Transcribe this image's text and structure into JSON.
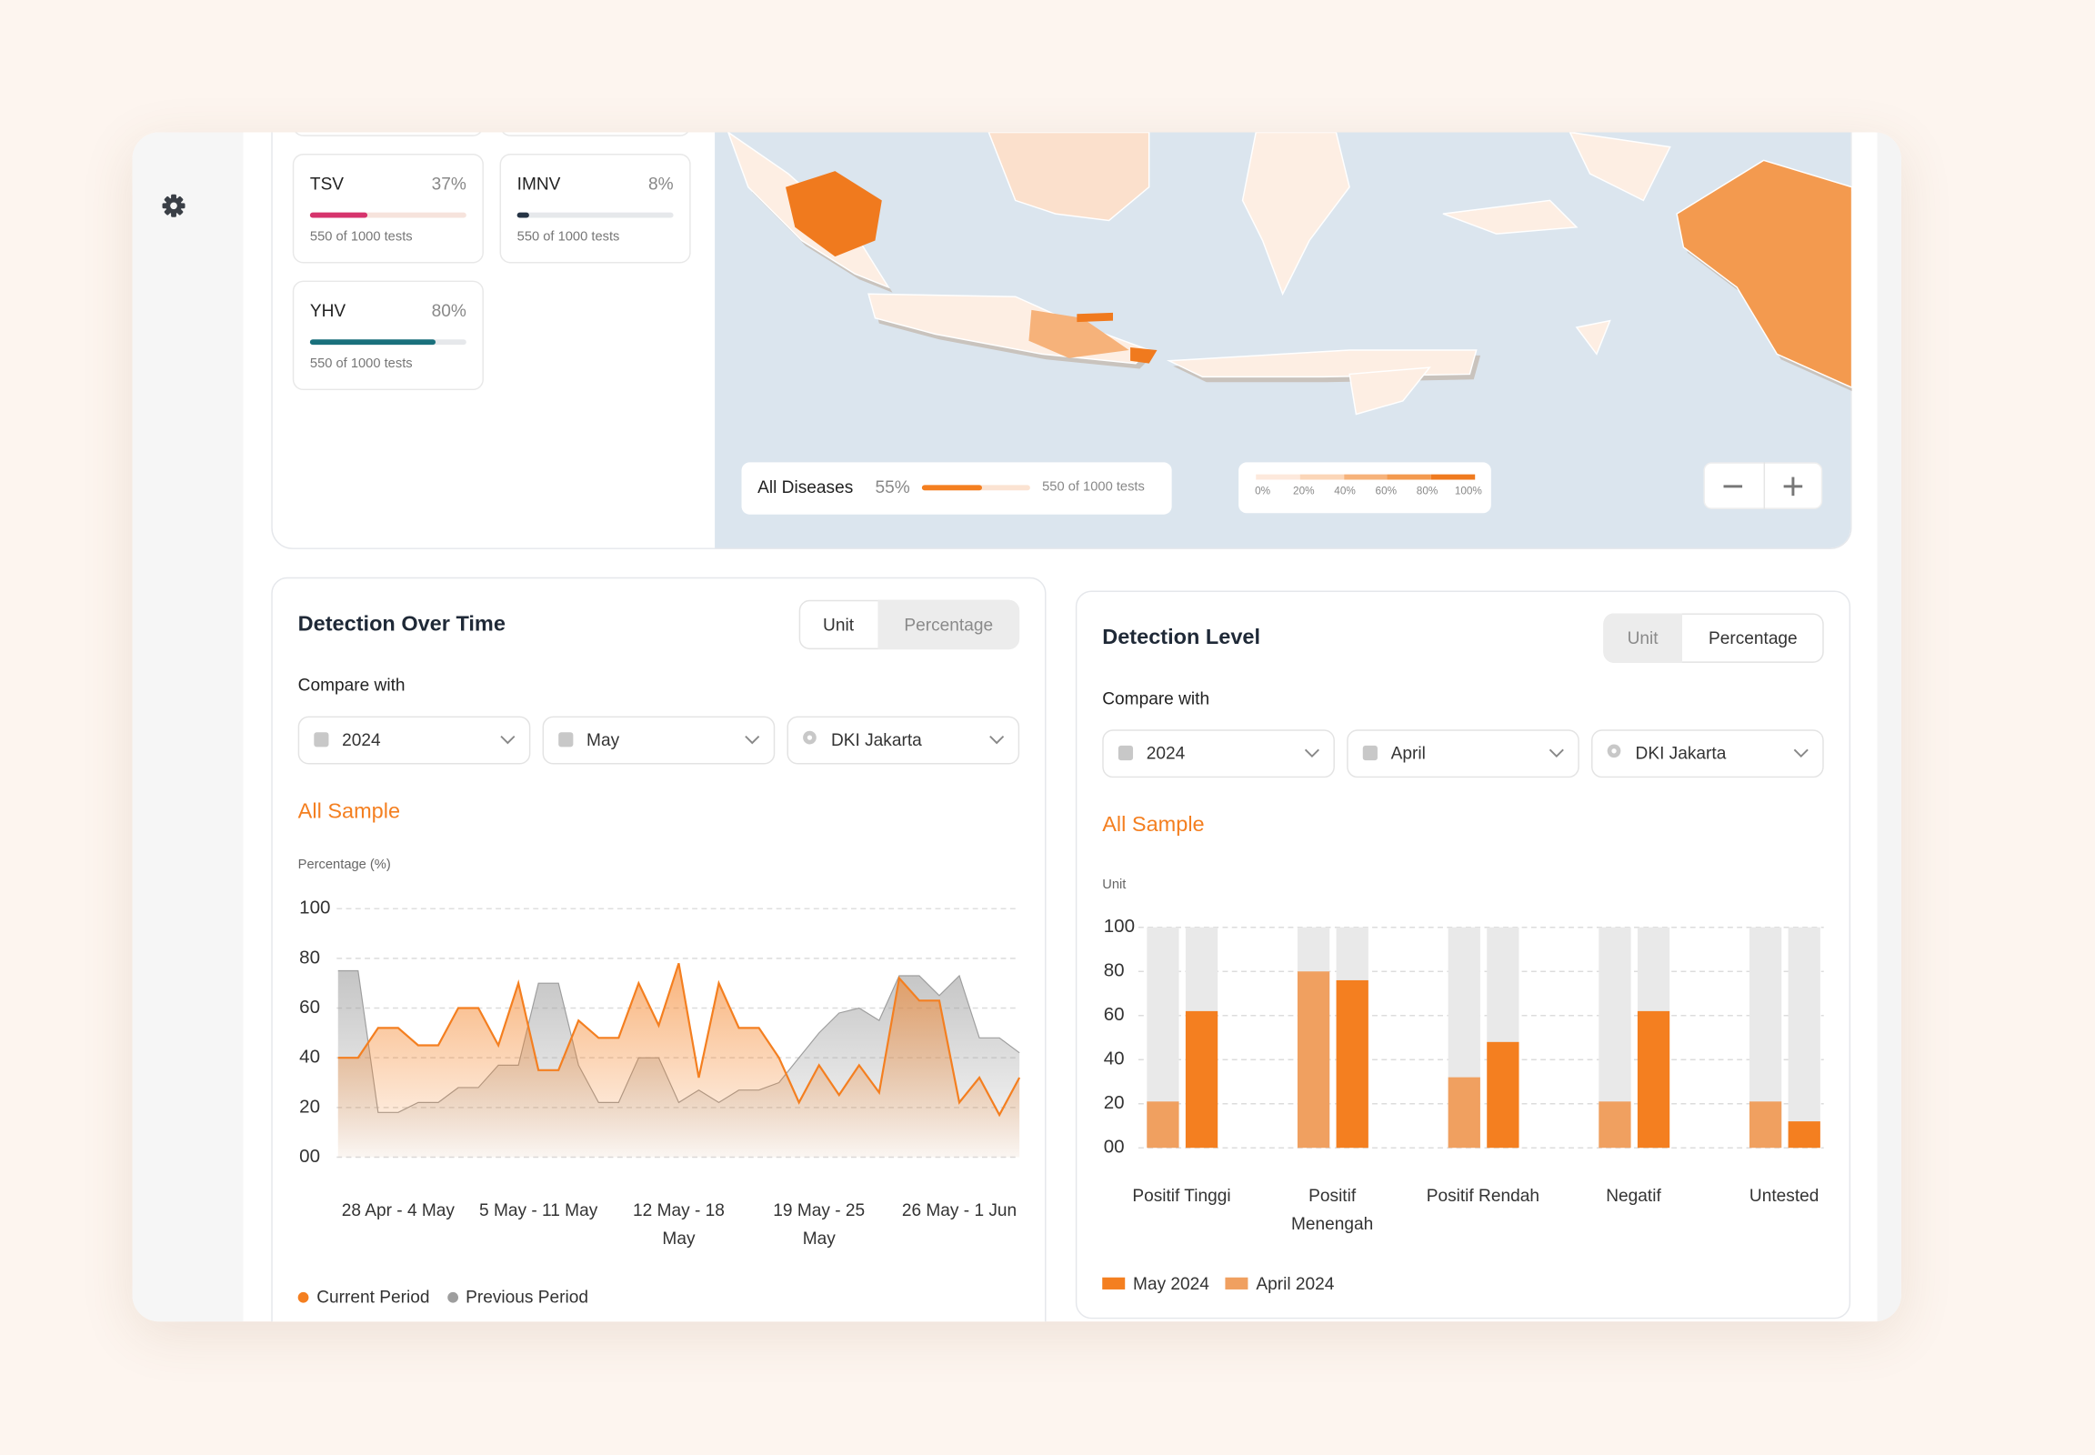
{
  "disease_cards": [
    {
      "name": "TSV",
      "percent": 37,
      "percent_label": "37%",
      "tests": "550 of 1000 tests",
      "color": "#d6336c"
    },
    {
      "name": "IMNV",
      "percent": 8,
      "percent_label": "8%",
      "tests": "550 of 1000 tests",
      "color": "#263445"
    },
    {
      "name": "YHV",
      "percent": 80,
      "percent_label": "80%",
      "tests": "550 of 1000 tests",
      "color": "#19707c"
    }
  ],
  "map": {
    "summary": {
      "label": "All Diseases",
      "percent": 55,
      "percent_label": "55%",
      "tests": "550 of 1000 tests"
    },
    "legend": [
      "0%",
      "20%",
      "40%",
      "60%",
      "80%",
      "100%"
    ]
  },
  "panels": [
    {
      "title": "Detection Over Time",
      "toggle": [
        "Unit",
        "Percentage"
      ],
      "active": 1,
      "compare_label": "Compare with",
      "filters": [
        "2024",
        "May",
        "DKI Jakarta"
      ],
      "sample_label": "All Sample"
    },
    {
      "title": "Detection Level",
      "toggle": [
        "Unit",
        "Percentage"
      ],
      "active": 0,
      "compare_label": "Compare with",
      "filters": [
        "2024",
        "April",
        "DKI Jakarta"
      ],
      "sample_label": "All Sample"
    }
  ],
  "chart_data": [
    {
      "type": "area",
      "y_label": "Percentage (%)",
      "ylim": [
        0,
        100
      ],
      "yticks": [
        {
          "value": 0,
          "label": "00"
        },
        20,
        40,
        60,
        80,
        100
      ],
      "grid": true,
      "categories": [
        null,
        null,
        null,
        "28 Apr - 4 May",
        null,
        null,
        null,
        null,
        null,
        null,
        "5 May - 11 May",
        null,
        null,
        null,
        null,
        null,
        null,
        "12 May - 18 May",
        null,
        null,
        null,
        null,
        null,
        null,
        "19 May - 25 May",
        null,
        null,
        null,
        null,
        null,
        null,
        "26 May - 1 Jun",
        null,
        null,
        null
      ],
      "series": [
        {
          "name": "Current Period",
          "color": "#f47f20",
          "values": [
            40,
            40,
            52,
            52,
            45,
            45,
            60,
            60,
            45,
            70,
            35,
            35,
            55,
            48,
            48,
            70,
            53,
            78,
            32,
            70,
            52,
            52,
            40,
            22,
            37,
            25,
            37,
            26,
            72,
            63,
            63,
            22,
            32,
            17,
            32
          ]
        },
        {
          "name": "Previous Period",
          "color": "#9e9e9e",
          "values": [
            75,
            75,
            18,
            18,
            22,
            22,
            28,
            28,
            37,
            37,
            70,
            70,
            37,
            22,
            22,
            40,
            40,
            22,
            27,
            22,
            27,
            27,
            30,
            40,
            50,
            58,
            60,
            55,
            73,
            73,
            65,
            73,
            48,
            48,
            42
          ]
        }
      ]
    },
    {
      "type": "bar",
      "y_label": "Unit",
      "ylim": [
        0,
        100
      ],
      "yticks": [
        {
          "value": 0,
          "label": "00"
        },
        20,
        40,
        60,
        80,
        100
      ],
      "grid": true,
      "categories": [
        "Positif Tinggi",
        "Positif Menengah",
        "Positif Rendah",
        "Negatif",
        "Untested"
      ],
      "series": [
        {
          "name": "May 2024",
          "color": "#f47f20",
          "values": [
            62,
            76,
            48,
            62,
            12
          ]
        },
        {
          "name": "April 2024",
          "color": "#f0a060",
          "values": [
            21,
            80,
            32,
            21,
            21
          ]
        }
      ]
    }
  ]
}
